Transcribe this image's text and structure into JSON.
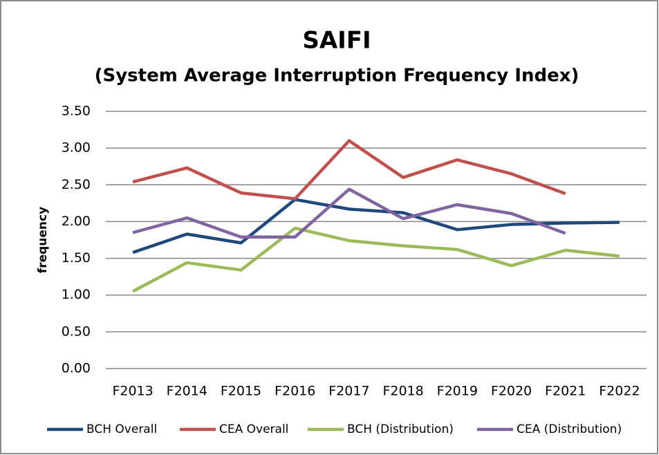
{
  "chart_data": {
    "type": "line",
    "title": "SAIFI",
    "subtitle": "(System Average Interruption Frequency Index)",
    "y_label": "frequency",
    "categories": [
      "F2013",
      "F2014",
      "F2015",
      "F2016",
      "F2017",
      "F2018",
      "F2019",
      "F2020",
      "F2021",
      "F2022"
    ],
    "series": [
      {
        "name": "BCH Overall",
        "color": "#1f497d",
        "values": [
          1.58,
          1.83,
          1.71,
          2.3,
          2.17,
          2.12,
          1.89,
          1.96,
          1.98,
          1.99
        ]
      },
      {
        "name": "CEA Overall",
        "color": "#c0504d",
        "values": [
          2.54,
          2.73,
          2.39,
          2.31,
          3.1,
          2.6,
          2.84,
          2.65,
          2.38,
          null
        ]
      },
      {
        "name": "BCH (Distribution)",
        "color": "#9bbb59",
        "values": [
          1.05,
          1.44,
          1.34,
          1.91,
          1.74,
          1.67,
          1.62,
          1.4,
          1.61,
          1.53
        ]
      },
      {
        "name": "CEA (Distribution)",
        "color": "#8064a2",
        "values": [
          1.85,
          2.05,
          1.79,
          1.79,
          2.44,
          2.04,
          2.23,
          2.11,
          1.84,
          null
        ]
      }
    ],
    "ylim": [
      0,
      3.5
    ],
    "yticks": [
      {
        "value": 0,
        "label": "0.00"
      },
      {
        "value": 0.5,
        "label": "0.50"
      },
      {
        "value": 1,
        "label": "1.00"
      },
      {
        "value": 1.5,
        "label": "1.50"
      },
      {
        "value": 2,
        "label": "2.00"
      },
      {
        "value": 2.5,
        "label": "2.50"
      },
      {
        "value": 3,
        "label": "3.00"
      },
      {
        "value": 3.5,
        "label": "3.50"
      }
    ],
    "grid": true,
    "legend": "bottom"
  }
}
